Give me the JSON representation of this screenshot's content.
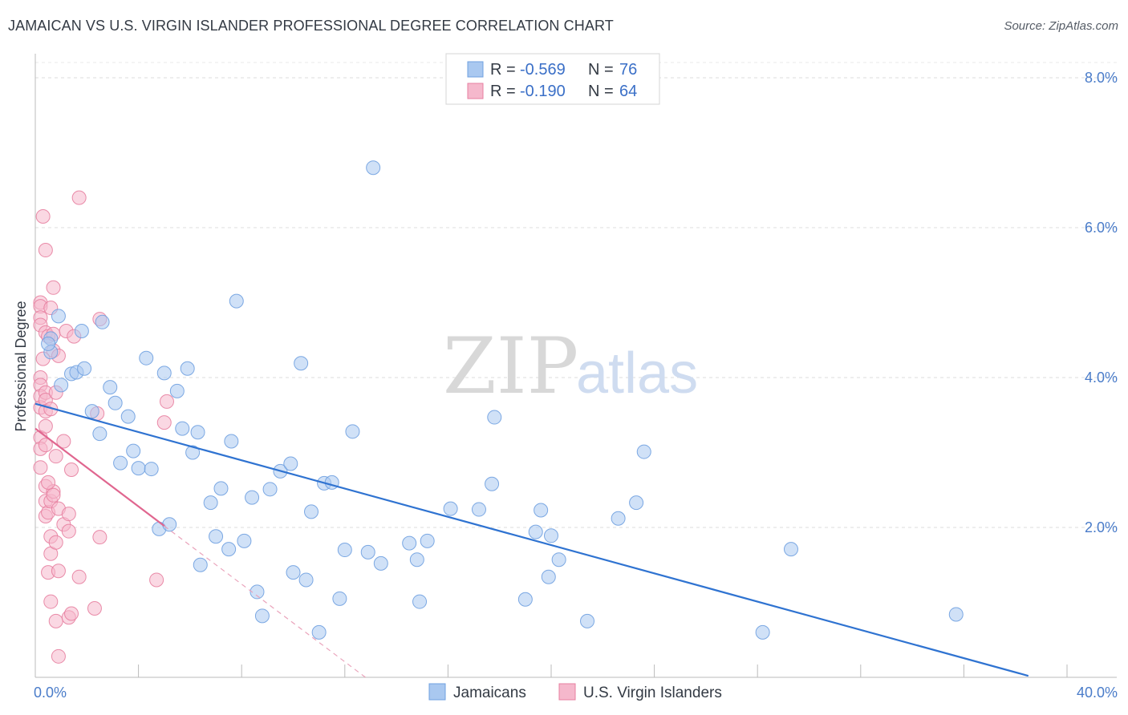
{
  "header": {
    "title": "JAMAICAN VS U.S. VIRGIN ISLANDER PROFESSIONAL DEGREE CORRELATION CHART",
    "source": "Source: ZipAtlas.com"
  },
  "watermark": {
    "zip": "ZIP",
    "atlas": "atlas"
  },
  "legend_top": {
    "r_label": "R =",
    "n_label": "N =",
    "rows": [
      {
        "r": "-0.569",
        "n": "76",
        "color": "#a9c8f0"
      },
      {
        "r": "-0.190",
        "n": "64",
        "color": "#f5b8cc"
      }
    ]
  },
  "chart_data": {
    "type": "scatter",
    "title": "JAMAICAN VS U.S. VIRGIN ISLANDER PROFESSIONAL DEGREE CORRELATION CHART",
    "xlabel": "",
    "ylabel": "Professional Degree",
    "xlim": [
      0,
      40
    ],
    "ylim": [
      0,
      8
    ],
    "x_tick_labels": [
      "0.0%",
      "40.0%"
    ],
    "y_ticks": [
      2,
      4,
      6,
      8
    ],
    "y_tick_labels": [
      "2.0%",
      "4.0%",
      "6.0%",
      "8.0%"
    ],
    "grid": "horizontal dashed",
    "legend_position": "top-center and bottom",
    "series": [
      {
        "name": "Jamaicans",
        "color": "#6fa0e0",
        "fill": "#a9c8f0",
        "r": -0.569,
        "n": 76,
        "trend": {
          "x0": 0,
          "y0": 3.65,
          "x1": 38.5,
          "y1": 0.02
        },
        "points": [
          [
            0.6,
            4.52
          ],
          [
            0.6,
            4.34
          ],
          [
            0.9,
            4.82
          ],
          [
            1.0,
            3.9
          ],
          [
            1.4,
            4.05
          ],
          [
            1.6,
            4.07
          ],
          [
            1.9,
            4.12
          ],
          [
            1.8,
            4.62
          ],
          [
            2.2,
            3.55
          ],
          [
            2.5,
            3.25
          ],
          [
            2.6,
            4.74
          ],
          [
            2.9,
            3.87
          ],
          [
            3.1,
            3.66
          ],
          [
            3.3,
            2.86
          ],
          [
            3.6,
            3.48
          ],
          [
            3.8,
            3.02
          ],
          [
            4.0,
            2.79
          ],
          [
            4.3,
            4.26
          ],
          [
            4.5,
            2.78
          ],
          [
            4.8,
            1.98
          ],
          [
            5.0,
            4.06
          ],
          [
            5.2,
            2.04
          ],
          [
            5.5,
            3.82
          ],
          [
            5.7,
            3.32
          ],
          [
            5.9,
            4.12
          ],
          [
            6.1,
            3.0
          ],
          [
            6.3,
            3.27
          ],
          [
            6.4,
            1.5
          ],
          [
            6.8,
            2.33
          ],
          [
            7.0,
            1.88
          ],
          [
            7.2,
            2.52
          ],
          [
            7.5,
            1.71
          ],
          [
            7.6,
            3.15
          ],
          [
            7.8,
            5.02
          ],
          [
            8.1,
            1.82
          ],
          [
            8.4,
            2.4
          ],
          [
            8.6,
            1.14
          ],
          [
            8.8,
            0.82
          ],
          [
            9.1,
            2.51
          ],
          [
            9.5,
            2.75
          ],
          [
            9.9,
            2.85
          ],
          [
            10.0,
            1.4
          ],
          [
            10.3,
            4.19
          ],
          [
            10.5,
            1.3
          ],
          [
            10.7,
            2.21
          ],
          [
            11.0,
            0.6
          ],
          [
            11.2,
            2.59
          ],
          [
            11.5,
            2.6
          ],
          [
            11.8,
            1.05
          ],
          [
            12.0,
            1.7
          ],
          [
            12.3,
            3.28
          ],
          [
            12.9,
            1.67
          ],
          [
            13.1,
            6.8
          ],
          [
            13.4,
            1.52
          ],
          [
            14.5,
            1.79
          ],
          [
            14.8,
            1.57
          ],
          [
            14.9,
            1.01
          ],
          [
            15.2,
            1.82
          ],
          [
            16.1,
            2.25
          ],
          [
            17.2,
            2.24
          ],
          [
            17.7,
            2.58
          ],
          [
            17.8,
            3.47
          ],
          [
            19.0,
            1.04
          ],
          [
            19.4,
            1.94
          ],
          [
            19.6,
            2.23
          ],
          [
            19.9,
            1.34
          ],
          [
            20.0,
            1.89
          ],
          [
            20.3,
            1.57
          ],
          [
            21.4,
            0.75
          ],
          [
            22.6,
            2.12
          ],
          [
            23.3,
            2.33
          ],
          [
            23.6,
            3.01
          ],
          [
            28.2,
            0.6
          ],
          [
            29.3,
            1.71
          ],
          [
            35.7,
            0.84
          ],
          [
            0.5,
            4.45
          ]
        ]
      },
      {
        "name": "U.S. Virgin Islanders",
        "color": "#e77fa0",
        "fill": "#f5b8cc",
        "r": -0.19,
        "n": 64,
        "trend_solid": {
          "x0": 0,
          "y0": 3.32,
          "x1": 5.0,
          "y1": 2.02
        },
        "trend_dashed": {
          "x0": 5.0,
          "y0": 2.02,
          "x1": 12.8,
          "y1": 0.0
        },
        "points": [
          [
            0.2,
            5.0
          ],
          [
            0.2,
            4.95
          ],
          [
            0.2,
            4.8
          ],
          [
            0.2,
            4.7
          ],
          [
            0.2,
            4.0
          ],
          [
            0.2,
            3.9
          ],
          [
            0.2,
            3.75
          ],
          [
            0.2,
            3.6
          ],
          [
            0.2,
            3.2
          ],
          [
            0.2,
            3.05
          ],
          [
            0.2,
            2.8
          ],
          [
            0.3,
            6.15
          ],
          [
            0.4,
            5.7
          ],
          [
            0.4,
            4.6
          ],
          [
            0.4,
            3.8
          ],
          [
            0.4,
            3.7
          ],
          [
            0.4,
            3.55
          ],
          [
            0.4,
            3.35
          ],
          [
            0.4,
            3.1
          ],
          [
            0.4,
            2.55
          ],
          [
            0.4,
            2.35
          ],
          [
            0.4,
            2.15
          ],
          [
            0.5,
            4.55
          ],
          [
            0.5,
            2.2
          ],
          [
            0.5,
            1.4
          ],
          [
            0.6,
            4.93
          ],
          [
            0.6,
            3.58
          ],
          [
            0.6,
            2.35
          ],
          [
            0.6,
            1.88
          ],
          [
            0.6,
            1.65
          ],
          [
            0.6,
            1.01
          ],
          [
            0.7,
            5.2
          ],
          [
            0.7,
            4.58
          ],
          [
            0.7,
            4.36
          ],
          [
            0.7,
            2.48
          ],
          [
            0.7,
            2.43
          ],
          [
            0.8,
            3.8
          ],
          [
            0.8,
            2.95
          ],
          [
            0.8,
            1.8
          ],
          [
            0.8,
            0.75
          ],
          [
            0.9,
            4.29
          ],
          [
            0.9,
            2.25
          ],
          [
            0.9,
            1.42
          ],
          [
            0.9,
            0.28
          ],
          [
            1.1,
            2.04
          ],
          [
            1.1,
            3.15
          ],
          [
            1.2,
            4.62
          ],
          [
            1.3,
            2.18
          ],
          [
            1.3,
            1.95
          ],
          [
            1.3,
            0.8
          ],
          [
            1.4,
            2.77
          ],
          [
            1.4,
            0.85
          ],
          [
            1.5,
            4.55
          ],
          [
            1.7,
            1.34
          ],
          [
            1.7,
            6.4
          ],
          [
            2.3,
            0.92
          ],
          [
            2.4,
            3.52
          ],
          [
            2.5,
            4.78
          ],
          [
            2.5,
            1.87
          ],
          [
            4.7,
            1.3
          ],
          [
            5.0,
            3.4
          ],
          [
            5.1,
            3.68
          ],
          [
            0.3,
            4.25
          ],
          [
            0.5,
            2.6
          ]
        ]
      }
    ]
  },
  "legend_bottom": {
    "items": [
      {
        "label": "Jamaicans",
        "color": "#a9c8f0",
        "stroke": "#6fa0e0"
      },
      {
        "label": "U.S. Virgin Islanders",
        "color": "#f5b8cc",
        "stroke": "#e77fa0"
      }
    ]
  }
}
